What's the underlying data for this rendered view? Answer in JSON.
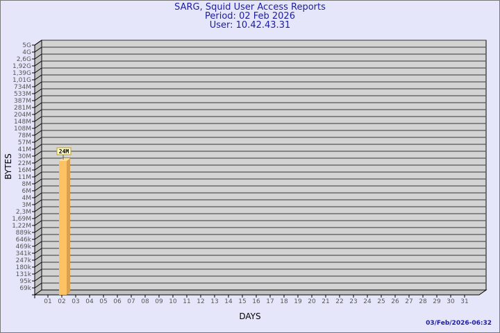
{
  "header": {
    "title": "SARG, Squid User Access Reports",
    "period": "Period: 02 Feb 2026",
    "user": "User: 10.42.43.31"
  },
  "timestamp": "03/Feb/2026-06:32",
  "colors": {
    "background": "#e6e6fa",
    "plot": "#d3d3d3",
    "bar": "#fdc264",
    "bar_side": "#d9a04e",
    "title": "#1c1ca0"
  },
  "chart_data": {
    "type": "bar",
    "title": "SARG, Squid User Access Reports",
    "xlabel": "DAYS",
    "ylabel": "BYTES",
    "y_scale": "log",
    "grid": true,
    "y_ticks": [
      "5G",
      "4G",
      "2,6G",
      "1,92G",
      "1,39G",
      "1,01G",
      "734M",
      "533M",
      "387M",
      "281M",
      "204M",
      "148M",
      "108M",
      "78M",
      "57M",
      "41M",
      "30M",
      "22M",
      "16M",
      "11M",
      "8M",
      "6M",
      "4M",
      "3M",
      "2,3M",
      "1,69M",
      "1,22M",
      "889k",
      "646k",
      "469k",
      "341k",
      "247k",
      "180k",
      "131k",
      "95k",
      "69k"
    ],
    "categories": [
      "01",
      "02",
      "03",
      "04",
      "05",
      "06",
      "07",
      "08",
      "09",
      "10",
      "11",
      "12",
      "13",
      "14",
      "15",
      "16",
      "17",
      "18",
      "19",
      "20",
      "21",
      "22",
      "23",
      "24",
      "25",
      "26",
      "27",
      "28",
      "29",
      "30",
      "31"
    ],
    "values": [
      null,
      "24M",
      null,
      null,
      null,
      null,
      null,
      null,
      null,
      null,
      null,
      null,
      null,
      null,
      null,
      null,
      null,
      null,
      null,
      null,
      null,
      null,
      null,
      null,
      null,
      null,
      null,
      null,
      null,
      null,
      null
    ],
    "data_labels": [
      {
        "category": "02",
        "label": "24M"
      }
    ]
  }
}
